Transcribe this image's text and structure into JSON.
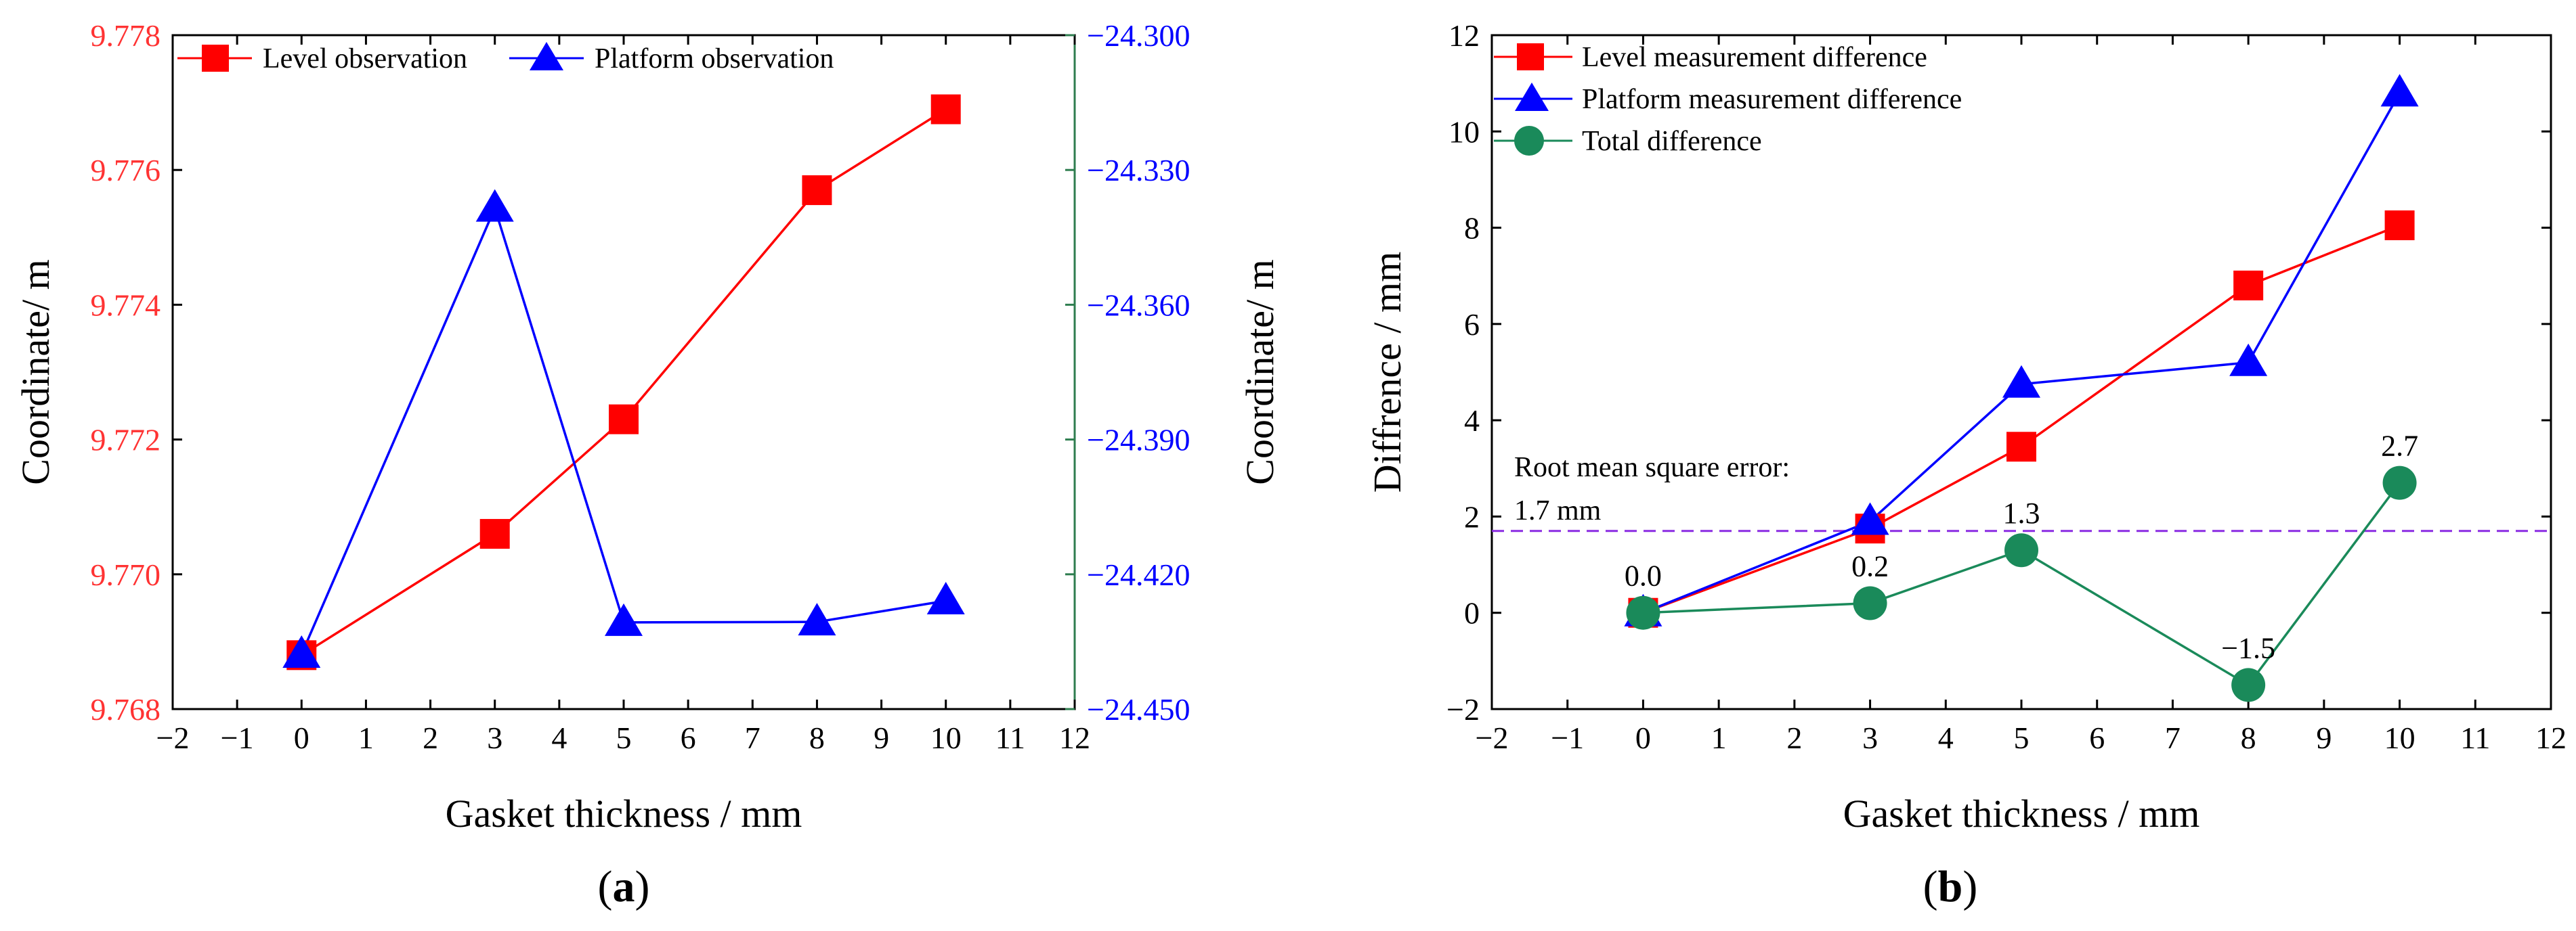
{
  "chart_data": [
    {
      "panel_label": "a",
      "type": "line",
      "xlabel": "Gasket thickness / mm",
      "ylabel_left": "Coordinate/ m",
      "ylabel_right": "Coordinate/ m",
      "xlim": [
        -2,
        12
      ],
      "x_ticks": [
        "−2",
        "−1",
        "0",
        "1",
        "2",
        "3",
        "4",
        "5",
        "6",
        "7",
        "8",
        "9",
        "10",
        "11",
        "12"
      ],
      "ylim_left": [
        9.768,
        9.778
      ],
      "y_ticks_left": [
        "9.768",
        "9.770",
        "9.772",
        "9.774",
        "9.776",
        "9.778"
      ],
      "ylim_right": [
        -24.45,
        -24.3
      ],
      "y_ticks_right": [
        "−24.450",
        "−24.420",
        "−24.390",
        "−24.360",
        "−24.330",
        "−24.300"
      ],
      "series": [
        {
          "name": "Level observation",
          "axis": "left",
          "marker": "square",
          "color": "#ff0000",
          "x": [
            0,
            3,
            5,
            8,
            10
          ],
          "y": [
            9.7688,
            9.7706,
            9.7723,
            9.7757,
            9.7769
          ]
        },
        {
          "name": "Platform observation",
          "axis": "right",
          "marker": "triangle",
          "color": "#0000ff",
          "x": [
            0,
            3,
            5,
            8,
            10
          ],
          "y": [
            -24.4378,
            -24.3385,
            -24.4307,
            -24.4306,
            -24.4259
          ]
        }
      ]
    },
    {
      "panel_label": "b",
      "type": "line",
      "xlabel": "Gasket thickness / mm",
      "ylabel": "Diffrence / mm",
      "xlim": [
        -2,
        12
      ],
      "x_ticks": [
        "−2",
        "−1",
        "0",
        "1",
        "2",
        "3",
        "4",
        "5",
        "6",
        "7",
        "8",
        "9",
        "10",
        "11",
        "12"
      ],
      "ylim": [
        -2,
        12
      ],
      "y_ticks": [
        "−2",
        "0",
        "2",
        "4",
        "6",
        "8",
        "10",
        "12"
      ],
      "series": [
        {
          "name": "Level measurement difference",
          "marker": "square",
          "color": "#ff0000",
          "x": [
            0,
            3,
            5,
            8,
            10
          ],
          "y": [
            0,
            1.75,
            3.45,
            6.8,
            8.05
          ]
        },
        {
          "name": "Platform measurement difference",
          "marker": "triangle",
          "color": "#0000ff",
          "x": [
            0,
            3,
            5,
            8,
            10
          ],
          "y": [
            0,
            1.9,
            4.75,
            5.2,
            10.8
          ]
        },
        {
          "name": "Total difference",
          "marker": "circle",
          "color": "#1a8a5a",
          "x": [
            0,
            3,
            5,
            8,
            10
          ],
          "y": [
            0,
            0.2,
            1.3,
            -1.5,
            2.7
          ],
          "point_labels": [
            "0.0",
            "0.2",
            "1.3",
            "−1.5",
            "2.7"
          ]
        }
      ],
      "reference_line": {
        "y": 1.7,
        "color": "#8a2be2",
        "label_line1": "Root mean square error:",
        "label_line2": "1.7 mm"
      }
    }
  ],
  "colors": {
    "left_axis_text": "#ff3333",
    "right_axis_text": "#0000ff",
    "right_axis_line": "#2e7d4f",
    "axis": "#000000"
  }
}
